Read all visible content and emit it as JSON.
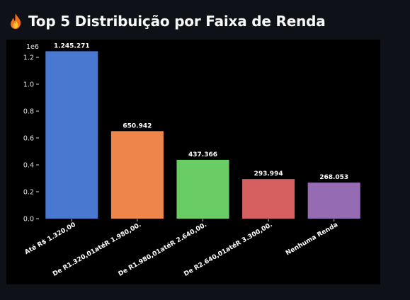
{
  "header": {
    "title": "Top 5 Distribuição por Faixa de Renda",
    "icon": "fire-icon"
  },
  "chart_data": {
    "type": "bar",
    "title": "",
    "xlabel": "",
    "ylabel": "",
    "y_offset_label": "1e6",
    "ylim": [
      0,
      1.3
    ],
    "yticks": [
      0.0,
      0.2,
      0.4,
      0.6,
      0.8,
      1.0,
      1.2
    ],
    "ytick_labels": [
      "0.0",
      "0.2",
      "0.4",
      "0.6",
      "0.8",
      "1.0",
      "1.2"
    ],
    "grid": false,
    "categories": [
      "Até R$ 1.320,00",
      "De R1.320,01atéR 1.980,00.",
      "De R1.980,01atéR 2.640,00.",
      "De R2.640,01atéR 3.300,00.",
      "Nenhuma Renda"
    ],
    "values": [
      1245271,
      650942,
      437366,
      293994,
      268053
    ],
    "value_labels": [
      "1.245.271",
      "650.942",
      "437.366",
      "293.994",
      "268.053"
    ],
    "colors": [
      "#4878d0",
      "#ee854a",
      "#6acc64",
      "#d65f5f",
      "#956cb4"
    ]
  }
}
